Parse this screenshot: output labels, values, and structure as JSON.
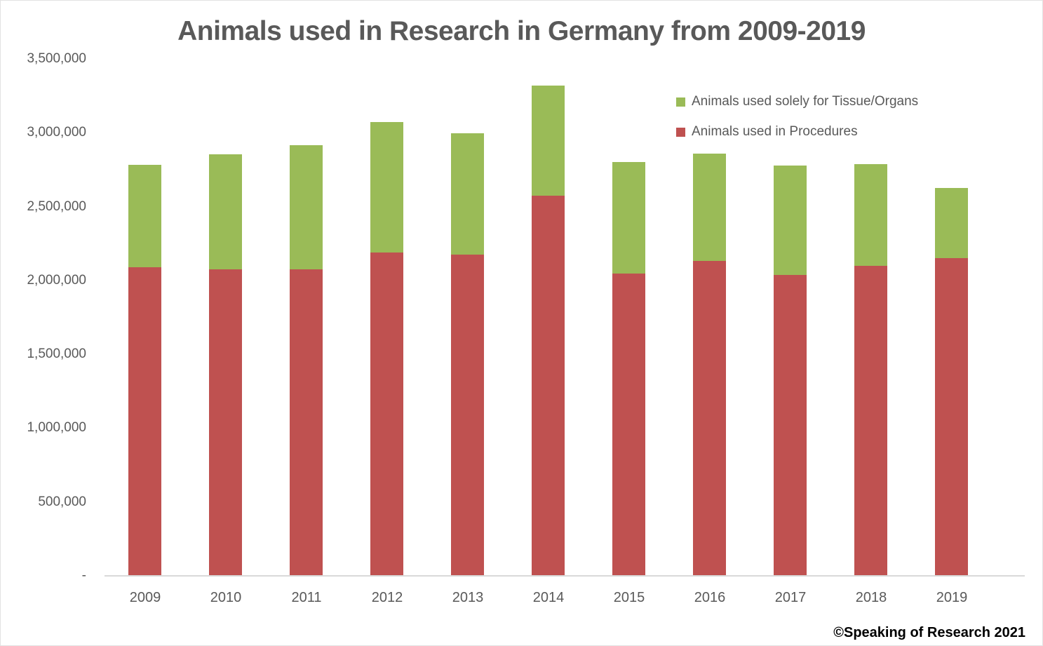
{
  "header": {
    "title": "Animals used in Research in Germany from 2009-2019"
  },
  "footer": {
    "attribution": "©Speaking of Research 2021"
  },
  "colors": {
    "text": "#595959",
    "axis_line": "#d9d9d9",
    "procedures": "#bf5150",
    "tissue_organs": "#9abb57"
  },
  "legend": {
    "position": "upper-right",
    "items": [
      {
        "label": "Animals used solely for Tissue/Organs",
        "color": "#9abb57",
        "swatch": "square"
      },
      {
        "label": "Animals used in Procedures",
        "color": "#bf5150",
        "swatch": "square"
      }
    ]
  },
  "chart_data": {
    "type": "bar",
    "stacked": true,
    "title": "Animals used in Research in Germany from 2009-2019",
    "categories": [
      "2009",
      "2010",
      "2011",
      "2012",
      "2013",
      "2014",
      "2015",
      "2016",
      "2017",
      "2018",
      "2019"
    ],
    "series": [
      {
        "name": "Animals used in Procedures",
        "color": "#bf5150",
        "stack_position": "bottom",
        "values": [
          2090000,
          2075000,
          2075000,
          2190000,
          2175000,
          2575000,
          2045000,
          2130000,
          2035000,
          2100000,
          2150000
        ]
      },
      {
        "name": "Animals used solely for Tissue/Organs",
        "color": "#9abb57",
        "stack_position": "top",
        "values": [
          695000,
          780000,
          840000,
          885000,
          820000,
          745000,
          755000,
          725000,
          740000,
          690000,
          475000
        ]
      }
    ],
    "xlabel": "",
    "ylabel": "",
    "ylim": [
      0,
      3500000
    ],
    "yticks": [
      {
        "value": 0,
        "label": "-"
      },
      {
        "value": 500000,
        "label": "500,000"
      },
      {
        "value": 1000000,
        "label": "1,000,000"
      },
      {
        "value": 1500000,
        "label": "1,500,000"
      },
      {
        "value": 2000000,
        "label": "2,000,000"
      },
      {
        "value": 2500000,
        "label": "2,500,000"
      },
      {
        "value": 3000000,
        "label": "3,000,000"
      },
      {
        "value": 3500000,
        "label": "3,500,000"
      }
    ],
    "grid": false,
    "legend_position": "upper-right"
  }
}
